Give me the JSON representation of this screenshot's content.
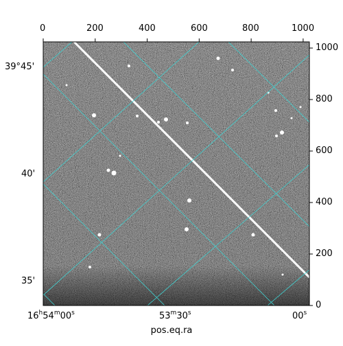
{
  "figure": {
    "image_description": "grayscale astronomical exposure with a bright diagonal satellite streak and scattered stars, overlaid with a cyan celestial coordinate grid",
    "grid_color": "#40d0d0",
    "pixel_axis_top": {
      "ticks": [
        "0",
        "200",
        "400",
        "600",
        "800",
        "1000"
      ],
      "values": [
        0,
        200,
        400,
        600,
        800,
        1000
      ]
    },
    "pixel_axis_right": {
      "ticks": [
        "0",
        "200",
        "400",
        "600",
        "800",
        "1000"
      ],
      "values": [
        0,
        200,
        400,
        600,
        800,
        1000
      ]
    },
    "dec_labels": [
      "39°45'",
      "40'",
      "35'"
    ],
    "ra_labels": {
      "left": {
        "h": "16",
        "hs": "h",
        "m": "54",
        "ms": "m",
        "s": "00",
        "ss": "s"
      },
      "mid": {
        "m": "53",
        "ms": "m",
        "s": "30",
        "ss": "s"
      },
      "right": {
        "s": "00",
        "ss": "s"
      }
    },
    "xlabel": "pos.eq.ra"
  }
}
